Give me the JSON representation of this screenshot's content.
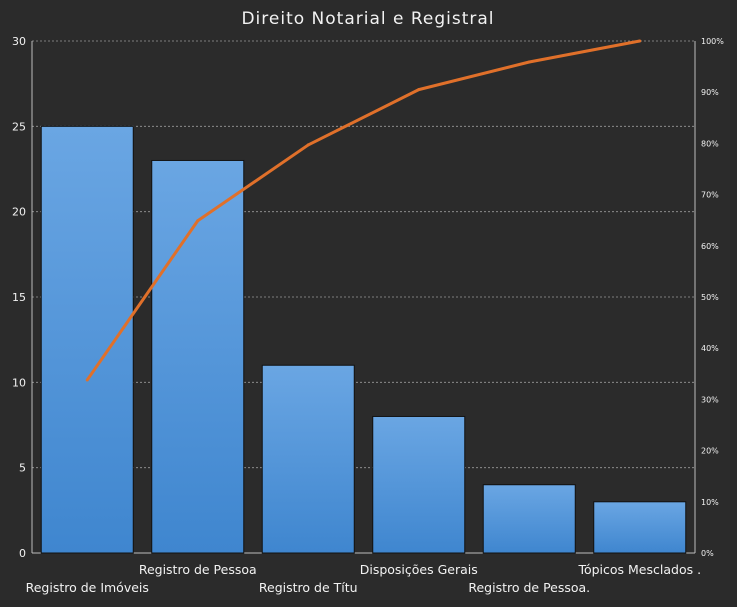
{
  "chart_data": {
    "type": "bar",
    "title": "Direito Notarial e Registral",
    "xlabel": "",
    "ylabel": "",
    "categories": [
      "Registro de Imóveis",
      "Registro de Pessoa",
      "Registro de Títu",
      "Disposições Gerais",
      "Registro de Pessoa.",
      "Tópicos Mesclados ."
    ],
    "series": [
      {
        "type": "bar",
        "values": [
          25,
          23,
          11,
          8,
          4,
          3
        ]
      },
      {
        "type": "line",
        "axis": "secondary",
        "values": [
          33.8,
          64.9,
          79.7,
          90.5,
          95.9,
          100
        ]
      }
    ],
    "ylim": [
      0,
      30
    ],
    "yticks": [
      0,
      5,
      10,
      15,
      20,
      25,
      30
    ],
    "y2lim": [
      0,
      100
    ],
    "y2ticks": [
      "0%",
      "10%",
      "20%",
      "30%",
      "40%",
      "50%",
      "60%",
      "70%",
      "80%",
      "90%",
      "100%"
    ],
    "grid": true,
    "legend": "none",
    "colors": {
      "background": "#2b2b2b",
      "bar": "#4a90d9",
      "line": "#e0702a",
      "grid": "#9a9a9a",
      "text": "#f2f2f2"
    }
  }
}
